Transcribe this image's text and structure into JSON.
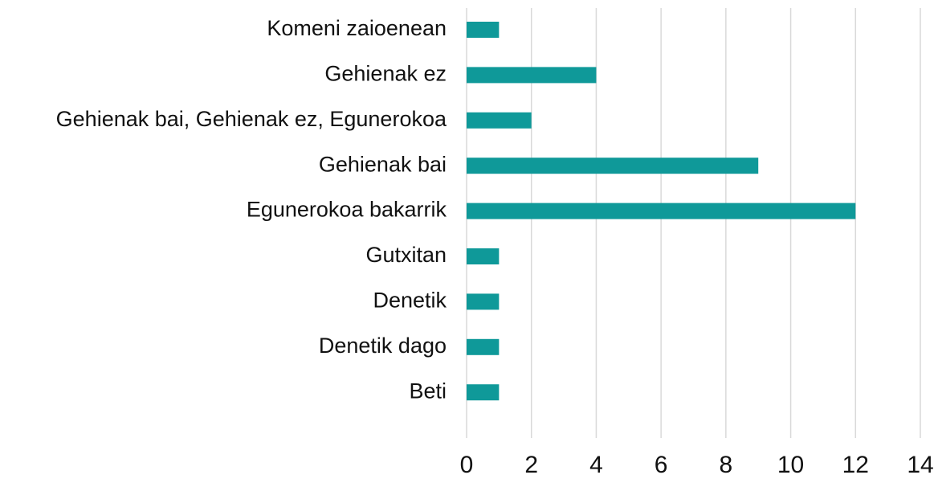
{
  "chart_data": {
    "type": "bar",
    "orientation": "horizontal",
    "categories": [
      "Komeni zaioenean",
      "Gehienak ez",
      "Gehienak bai, Gehienak ez, Egunerokoa",
      "Gehienak bai",
      "Egunerokoa bakarrik",
      "Gutxitan",
      "Denetik",
      "Denetik dago",
      "Beti"
    ],
    "values": [
      1,
      4,
      2,
      9,
      12,
      1,
      1,
      1,
      1
    ],
    "color": "#0f9999",
    "xlim": [
      0,
      14
    ],
    "xticks": [
      0,
      2,
      4,
      6,
      8,
      10,
      12,
      14
    ],
    "grid": true
  }
}
